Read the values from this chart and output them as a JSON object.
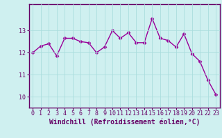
{
  "x": [
    0,
    1,
    2,
    3,
    4,
    5,
    6,
    7,
    8,
    9,
    10,
    11,
    12,
    13,
    14,
    15,
    16,
    17,
    18,
    19,
    20,
    21,
    22,
    23
  ],
  "y": [
    12.0,
    12.3,
    12.4,
    11.85,
    12.65,
    12.65,
    12.5,
    12.45,
    12.0,
    12.25,
    13.0,
    12.65,
    12.9,
    12.45,
    12.45,
    13.55,
    12.65,
    12.55,
    12.25,
    12.85,
    11.95,
    11.6,
    10.75,
    10.1
  ],
  "line_color": "#990099",
  "marker": "D",
  "marker_size": 2.5,
  "linewidth": 1.0,
  "xlabel": "Windchill (Refroidissement éolien,°C)",
  "xlim": [
    -0.5,
    23.5
  ],
  "ylim": [
    9.5,
    14.2
  ],
  "yticks": [
    10,
    11,
    12,
    13
  ],
  "xticks": [
    0,
    1,
    2,
    3,
    4,
    5,
    6,
    7,
    8,
    9,
    10,
    11,
    12,
    13,
    14,
    15,
    16,
    17,
    18,
    19,
    20,
    21,
    22,
    23
  ],
  "bg_color": "#cff0f0",
  "grid_color": "#aadddd",
  "axis_color": "#660066",
  "tick_color": "#660066",
  "label_color": "#660066",
  "xlabel_fontsize": 7,
  "tick_fontsize": 6
}
